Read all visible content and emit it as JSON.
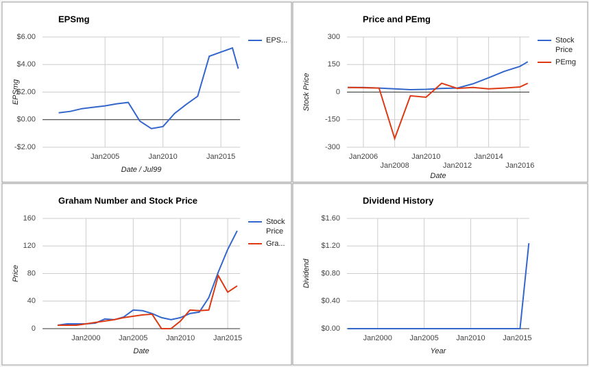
{
  "chart_data": [
    {
      "type": "line",
      "title": "EPSmg",
      "x_label": "Date / Jul99",
      "y_label": "EPSmg",
      "x": [
        2001,
        2002,
        2003,
        2004,
        2005,
        2006,
        2007,
        2008,
        2009,
        2010,
        2011,
        2012,
        2013,
        2014,
        2015,
        2016,
        2016.5
      ],
      "series": [
        {
          "name": "EPS...",
          "color": "#3366cc",
          "values": [
            0.5,
            0.6,
            0.8,
            0.9,
            1.0,
            1.15,
            1.25,
            -0.1,
            -0.65,
            -0.5,
            0.45,
            1.1,
            1.7,
            4.6,
            4.9,
            5.2,
            3.7
          ]
        }
      ],
      "xlim": [
        1999.6,
        2016.65
      ],
      "ylim": [
        -2,
        6
      ],
      "xticks": [
        {
          "value": 2005,
          "label": "Jan2005"
        },
        {
          "value": 2010,
          "label": "Jan2010"
        },
        {
          "value": 2015,
          "label": "Jan2015"
        }
      ],
      "yticks": [
        {
          "value": 6,
          "label": "$6.00"
        },
        {
          "value": 4,
          "label": "$4.00"
        },
        {
          "value": 2,
          "label": "$2.00"
        },
        {
          "value": 0,
          "label": "$0.00"
        },
        {
          "value": -2,
          "label": "-$2.00"
        }
      ],
      "grid": true,
      "legend": "right"
    },
    {
      "type": "line",
      "title": "Price and PEmg",
      "x_label": "Date",
      "y_label": "Stock Price",
      "x": [
        2005,
        2006,
        2007,
        2008,
        2009,
        2010,
        2011,
        2012,
        2013,
        2014,
        2015,
        2016,
        2016.5
      ],
      "series": [
        {
          "name": "Stock Price",
          "color": "#3366cc",
          "values": [
            25,
            25,
            22,
            18,
            13,
            15,
            20,
            22,
            45,
            78,
            113,
            140,
            165
          ]
        },
        {
          "name": "PEmg",
          "color": "#dc3912",
          "values": [
            25,
            24,
            22,
            -253,
            -20,
            -28,
            48,
            20,
            25,
            18,
            22,
            28,
            48
          ]
        }
      ],
      "xlim": [
        2004.95,
        2016.6
      ],
      "ylim": [
        -300,
        300
      ],
      "xticks": [
        {
          "value": 2006,
          "label": "Jan2006"
        },
        {
          "value": 2008,
          "label": "Jan2008"
        },
        {
          "value": 2010,
          "label": "Jan2010"
        },
        {
          "value": 2012,
          "label": "Jan2012"
        },
        {
          "value": 2014,
          "label": "Jan2014"
        },
        {
          "value": 2016,
          "label": "Jan2016"
        }
      ],
      "yticks": [
        300,
        150,
        0,
        -150,
        -300
      ],
      "grid": true,
      "legend": "right"
    },
    {
      "type": "line",
      "title": "Graham Number and Stock Price",
      "x_label": "Date",
      "y_label": "Price",
      "x": [
        1997,
        1998,
        1999,
        2000,
        2001,
        2002,
        2003,
        2004,
        2005,
        2006,
        2007,
        2008,
        2009,
        2010,
        2011,
        2012,
        2013,
        2014,
        2015,
        2016
      ],
      "series": [
        {
          "name": "Stock Price",
          "color": "#3366cc",
          "values": [
            5,
            7,
            7,
            7,
            8,
            14,
            13,
            17,
            27,
            26,
            22,
            16,
            13,
            16,
            22,
            24,
            45,
            82,
            115,
            142
          ]
        },
        {
          "name": "Gra...",
          "color": "#dc3912",
          "values": [
            5,
            5,
            5,
            7,
            9,
            11,
            13,
            16,
            18,
            20,
            21,
            0,
            0,
            11,
            27,
            26,
            27,
            77,
            53,
            62
          ]
        }
      ],
      "xlim": [
        1995.4,
        2016.3
      ],
      "ylim": [
        0,
        160
      ],
      "xticks": [
        {
          "value": 2000,
          "label": "Jan2000"
        },
        {
          "value": 2005,
          "label": "Jan2005"
        },
        {
          "value": 2010,
          "label": "Jan2010"
        },
        {
          "value": 2015,
          "label": "Jan2015"
        }
      ],
      "yticks": [
        160,
        120,
        80,
        40,
        0
      ],
      "grid": true,
      "legend": "right"
    },
    {
      "type": "line",
      "title": "Dividend History",
      "x_label": "Year",
      "y_label": "Dividend",
      "x": [
        1996.8,
        2015.3,
        2016.25
      ],
      "series": [
        {
          "color": "#3366cc",
          "values": [
            0,
            0,
            1.24
          ]
        }
      ],
      "xlim": [
        1996.7,
        2016.3
      ],
      "ylim": [
        0,
        1.6
      ],
      "xticks": [
        {
          "value": 2000,
          "label": "Jan2000"
        },
        {
          "value": 2005,
          "label": "Jan2005"
        },
        {
          "value": 2010,
          "label": "Jan2010"
        },
        {
          "value": 2015,
          "label": "Jan2015"
        }
      ],
      "yticks": [
        {
          "value": 1.6,
          "label": "$1.60"
        },
        {
          "value": 1.2,
          "label": "$1.20"
        },
        {
          "value": 0.8,
          "label": "$0.80"
        },
        {
          "value": 0.4,
          "label": "$0.40"
        },
        {
          "value": 0,
          "label": "$0.00"
        }
      ],
      "grid": true
    }
  ]
}
